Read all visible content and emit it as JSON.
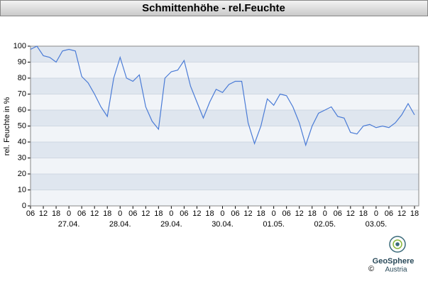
{
  "chart_data": {
    "type": "line",
    "title": "Schmittenhöhe - rel.Feuchte",
    "y_label": "rel. Feuchte in %",
    "x": [
      6,
      9,
      12,
      15,
      18,
      21,
      24,
      27,
      30,
      33,
      36,
      39,
      42,
      45,
      48,
      51,
      54,
      57,
      60,
      63,
      66,
      69,
      72,
      75,
      78,
      81,
      84,
      87,
      90,
      93,
      96,
      99,
      102,
      105,
      108,
      111,
      114,
      117,
      120,
      123,
      126,
      129,
      132,
      135,
      138,
      141,
      144,
      147,
      150,
      153,
      156,
      159,
      162,
      165,
      168,
      171,
      174,
      177,
      180,
      183,
      186
    ],
    "series": [
      {
        "name": "rel.Feuchte",
        "color": "#4a7bd6",
        "values": [
          98,
          100,
          94,
          93,
          90,
          97,
          98,
          97,
          81,
          77,
          70,
          62,
          56,
          80,
          93,
          80,
          78,
          82,
          62,
          53,
          48,
          80,
          84,
          85,
          91,
          75,
          65,
          55,
          65,
          73,
          71,
          76,
          78,
          78,
          52,
          39,
          50,
          67,
          63,
          70,
          69,
          62,
          52,
          38,
          50,
          58,
          60,
          62,
          56,
          55,
          46,
          45,
          50,
          51,
          49,
          50,
          49,
          52,
          57,
          64,
          57
        ]
      }
    ],
    "xlim": [
      6,
      188
    ],
    "ylim": [
      0,
      100
    ],
    "yticks": [
      0,
      10,
      20,
      30,
      40,
      50,
      60,
      70,
      80,
      90,
      100
    ],
    "xticks": [
      {
        "value": 6,
        "label": "06"
      },
      {
        "value": 12,
        "label": "12"
      },
      {
        "value": 18,
        "label": "18"
      },
      {
        "value": 24,
        "label": "0"
      },
      {
        "value": 30,
        "label": "06"
      },
      {
        "value": 36,
        "label": "12"
      },
      {
        "value": 42,
        "label": "18"
      },
      {
        "value": 48,
        "label": "0"
      },
      {
        "value": 54,
        "label": "06"
      },
      {
        "value": 60,
        "label": "12"
      },
      {
        "value": 66,
        "label": "18"
      },
      {
        "value": 72,
        "label": "0"
      },
      {
        "value": 78,
        "label": "06"
      },
      {
        "value": 84,
        "label": "12"
      },
      {
        "value": 90,
        "label": "18"
      },
      {
        "value": 96,
        "label": "0"
      },
      {
        "value": 102,
        "label": "06"
      },
      {
        "value": 108,
        "label": "12"
      },
      {
        "value": 114,
        "label": "18"
      },
      {
        "value": 120,
        "label": "0"
      },
      {
        "value": 126,
        "label": "06"
      },
      {
        "value": 132,
        "label": "12"
      },
      {
        "value": 138,
        "label": "18"
      },
      {
        "value": 144,
        "label": "0"
      },
      {
        "value": 150,
        "label": "06"
      },
      {
        "value": 156,
        "label": "12"
      },
      {
        "value": 162,
        "label": "18"
      },
      {
        "value": 168,
        "label": "0"
      },
      {
        "value": 174,
        "label": "06"
      },
      {
        "value": 180,
        "label": "12"
      },
      {
        "value": 186,
        "label": "18"
      }
    ],
    "date_labels": [
      {
        "value": 24,
        "label": "27.04."
      },
      {
        "value": 48,
        "label": "28.04."
      },
      {
        "value": 72,
        "label": "29.04."
      },
      {
        "value": 96,
        "label": "30.04."
      },
      {
        "value": 120,
        "label": "01.05."
      },
      {
        "value": 144,
        "label": "02.05."
      },
      {
        "value": 168,
        "label": "03.05."
      }
    ]
  },
  "footer": {
    "logo_name": "GeoSphere",
    "logo_sub": "Austria",
    "copyright": "©"
  }
}
